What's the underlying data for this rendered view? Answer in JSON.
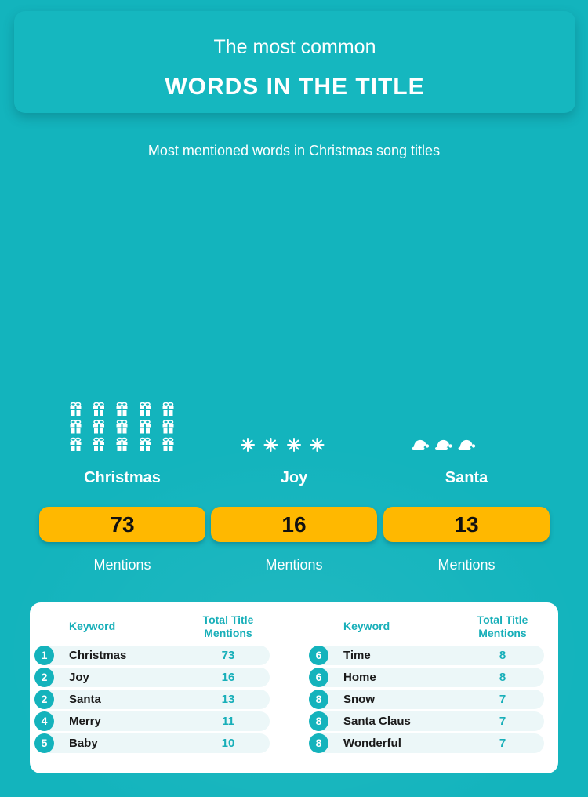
{
  "header": {
    "title_line1": "The most common",
    "title_line2": "WORDS IN THE TITLE"
  },
  "subtitle": "Most mentioned words in Christmas song titles",
  "chart_data": {
    "type": "bar",
    "title": "Most mentioned words in Christmas song titles",
    "categories": [
      "Christmas",
      "Joy",
      "Santa"
    ],
    "values": [
      73,
      16,
      13
    ],
    "value_label": "Mentions",
    "icons": [
      "gift-icon",
      "sparkle-icon",
      "santa-hat-icon"
    ],
    "colors": {
      "background": "#13b4bd",
      "pill": "#ffb800",
      "icon": "#ffffff",
      "accent": "#18afb9"
    }
  },
  "words": [
    {
      "label": "Christmas",
      "value": "73",
      "unit": "Mentions"
    },
    {
      "label": "Joy",
      "value": "16",
      "unit": "Mentions"
    },
    {
      "label": "Santa",
      "value": "13",
      "unit": "Mentions"
    }
  ],
  "table": {
    "header_keyword": "Keyword",
    "header_total_line1": "Total Title",
    "header_total_line2": "Mentions",
    "left_rows": [
      {
        "rank": "1",
        "keyword": "Christmas",
        "mentions": "73"
      },
      {
        "rank": "2",
        "keyword": "Joy",
        "mentions": "16"
      },
      {
        "rank": "2",
        "keyword": "Santa",
        "mentions": "13"
      },
      {
        "rank": "4",
        "keyword": "Merry",
        "mentions": "11"
      },
      {
        "rank": "5",
        "keyword": "Baby",
        "mentions": "10"
      }
    ],
    "right_rows": [
      {
        "rank": "6",
        "keyword": "Time",
        "mentions": "8"
      },
      {
        "rank": "6",
        "keyword": "Home",
        "mentions": "8"
      },
      {
        "rank": "8",
        "keyword": "Snow",
        "mentions": "7"
      },
      {
        "rank": "8",
        "keyword": "Santa Claus",
        "mentions": "7"
      },
      {
        "rank": "8",
        "keyword": "Wonderful",
        "mentions": "7"
      }
    ]
  }
}
